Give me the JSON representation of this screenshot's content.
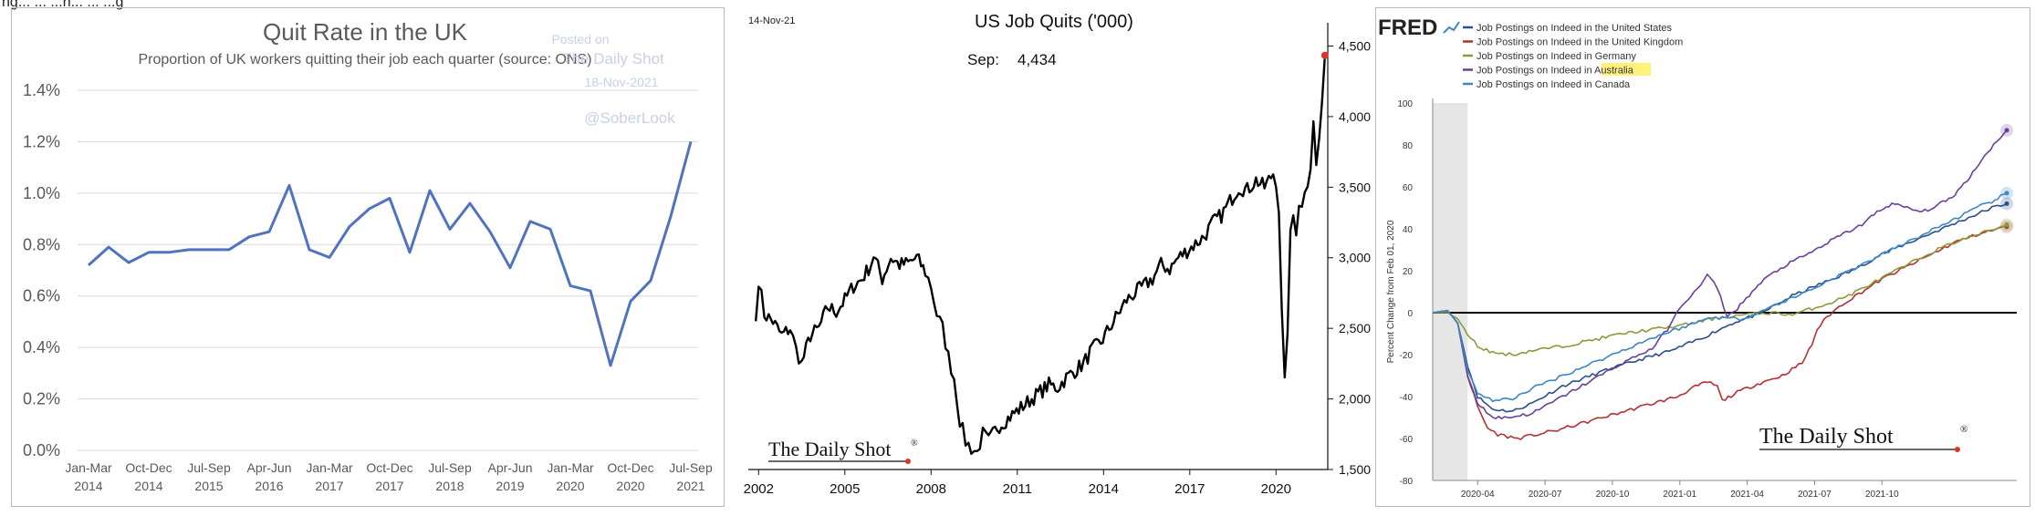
{
  "header_fragment": "ng... ... ...n... ... ...g",
  "chart_data": [
    {
      "type": "line",
      "title": "Quit Rate in the UK",
      "subtitle": "Proportion of UK workers quitting their job each quarter (source: ONS)",
      "watermark_lines": [
        "Posted on",
        "The Daily Shot",
        "18-Nov-2021",
        "@SoberLook"
      ],
      "yticks": [
        "0.0%",
        "0.2%",
        "0.4%",
        "0.6%",
        "0.8%",
        "1.0%",
        "1.2%",
        "1.4%"
      ],
      "ylim": [
        0,
        1.4
      ],
      "xtick_labels": [
        [
          "Jan-Mar",
          "2014"
        ],
        [
          "Oct-Dec",
          "2014"
        ],
        [
          "Jul-Sep",
          "2015"
        ],
        [
          "Apr-Jun",
          "2016"
        ],
        [
          "Jan-Mar",
          "2017"
        ],
        [
          "Oct-Dec",
          "2017"
        ],
        [
          "Jul-Sep",
          "2018"
        ],
        [
          "Apr-Jun",
          "2019"
        ],
        [
          "Jan-Mar",
          "2020"
        ],
        [
          "Oct-Dec",
          "2020"
        ],
        [
          "Jul-Sep",
          "2021"
        ]
      ],
      "x_quarters": [
        "2014 Q1",
        "2014 Q2",
        "2014 Q3",
        "2014 Q4",
        "2015 Q1",
        "2015 Q2",
        "2015 Q3",
        "2015 Q4",
        "2016 Q1",
        "2016 Q2",
        "2016 Q3",
        "2016 Q4",
        "2017 Q1",
        "2017 Q2",
        "2017 Q3",
        "2017 Q4",
        "2018 Q1",
        "2018 Q2",
        "2018 Q3",
        "2018 Q4",
        "2019 Q1",
        "2019 Q2",
        "2019 Q3",
        "2019 Q4",
        "2020 Q1",
        "2020 Q2",
        "2020 Q3",
        "2020 Q4",
        "2021 Q1",
        "2021 Q2",
        "2021 Q3"
      ],
      "values": [
        0.72,
        0.79,
        0.73,
        0.77,
        0.77,
        0.78,
        0.78,
        0.78,
        0.83,
        0.85,
        1.03,
        0.78,
        0.75,
        0.87,
        0.94,
        0.98,
        0.77,
        1.01,
        0.86,
        0.96,
        0.85,
        0.71,
        0.89,
        0.86,
        0.64,
        0.62,
        0.33,
        0.58,
        0.66,
        0.91,
        1.2
      ],
      "line_color": "#4f73be"
    },
    {
      "type": "line",
      "title": "US Job Quits ('000)",
      "date_label": "14-Nov-21",
      "annotation_label": "Sep:",
      "annotation_value": "4,434",
      "yticks": [
        "1,500",
        "2,000",
        "2,500",
        "3,000",
        "3,500",
        "4,000",
        "4,500"
      ],
      "ylim": [
        1500,
        4600
      ],
      "xticks": [
        "2002",
        "2005",
        "2008",
        "2011",
        "2014",
        "2017",
        "2020"
      ],
      "xlim": [
        2001.8,
        2021.8
      ],
      "brand": "The Daily Shot",
      "brand_mark": "®",
      "anchors": [
        [
          2001.9,
          2550
        ],
        [
          2002.0,
          2850
        ],
        [
          2002.2,
          2600
        ],
        [
          2002.5,
          2550
        ],
        [
          2002.8,
          2450
        ],
        [
          2003.1,
          2500
        ],
        [
          2003.3,
          2350
        ],
        [
          2003.5,
          2250
        ],
        [
          2003.8,
          2450
        ],
        [
          2004.1,
          2500
        ],
        [
          2004.4,
          2650
        ],
        [
          2004.7,
          2620
        ],
        [
          2005.0,
          2700
        ],
        [
          2005.3,
          2800
        ],
        [
          2005.6,
          2850
        ],
        [
          2005.9,
          2950
        ],
        [
          2006.0,
          3020
        ],
        [
          2006.3,
          2850
        ],
        [
          2006.6,
          3000
        ],
        [
          2006.9,
          2950
        ],
        [
          2007.2,
          2960
        ],
        [
          2007.5,
          3000
        ],
        [
          2007.8,
          2900
        ],
        [
          2008.0,
          2800
        ],
        [
          2008.2,
          2600
        ],
        [
          2008.4,
          2500
        ],
        [
          2008.6,
          2300
        ],
        [
          2008.8,
          2150
        ],
        [
          2009.0,
          1850
        ],
        [
          2009.2,
          1700
        ],
        [
          2009.4,
          1650
        ],
        [
          2009.6,
          1620
        ],
        [
          2009.8,
          1750
        ],
        [
          2010.0,
          1700
        ],
        [
          2010.3,
          1800
        ],
        [
          2010.6,
          1850
        ],
        [
          2010.9,
          1900
        ],
        [
          2011.2,
          1950
        ],
        [
          2011.5,
          2000
        ],
        [
          2011.8,
          2050
        ],
        [
          2012.1,
          2100
        ],
        [
          2012.4,
          2080
        ],
        [
          2012.7,
          2150
        ],
        [
          2013.0,
          2200
        ],
        [
          2013.3,
          2250
        ],
        [
          2013.6,
          2350
        ],
        [
          2013.9,
          2400
        ],
        [
          2014.2,
          2500
        ],
        [
          2014.5,
          2600
        ],
        [
          2014.8,
          2700
        ],
        [
          2015.1,
          2750
        ],
        [
          2015.4,
          2800
        ],
        [
          2015.7,
          2850
        ],
        [
          2016.0,
          2950
        ],
        [
          2016.3,
          2920
        ],
        [
          2016.6,
          3000
        ],
        [
          2016.9,
          3050
        ],
        [
          2017.2,
          3100
        ],
        [
          2017.5,
          3150
        ],
        [
          2017.8,
          3250
        ],
        [
          2018.1,
          3300
        ],
        [
          2018.4,
          3400
        ],
        [
          2018.7,
          3500
        ],
        [
          2019.0,
          3480
        ],
        [
          2019.3,
          3550
        ],
        [
          2019.6,
          3500
        ],
        [
          2019.9,
          3600
        ],
        [
          2020.0,
          3550
        ],
        [
          2020.1,
          3350
        ],
        [
          2020.2,
          2600
        ],
        [
          2020.3,
          2100
        ],
        [
          2020.4,
          2500
        ],
        [
          2020.5,
          3150
        ],
        [
          2020.6,
          3300
        ],
        [
          2020.7,
          3200
        ],
        [
          2020.8,
          3400
        ],
        [
          2020.9,
          3350
        ],
        [
          2021.0,
          3500
        ],
        [
          2021.1,
          3550
        ],
        [
          2021.2,
          3650
        ],
        [
          2021.3,
          3950
        ],
        [
          2021.4,
          3650
        ],
        [
          2021.5,
          3850
        ],
        [
          2021.6,
          4050
        ],
        [
          2021.7,
          4434
        ]
      ]
    },
    {
      "type": "line",
      "brand_left": "FRED",
      "legend": [
        {
          "pre": "Job Postings on Indeed in the United States",
          "hl": "",
          "color": "#2a4f8a"
        },
        {
          "pre": "Job Postings on Indeed in the United Kingdom",
          "hl": "",
          "color": "#b3312e"
        },
        {
          "pre": "Job Postings on Indeed in Germany",
          "hl": "",
          "color": "#8c9a3a"
        },
        {
          "pre": "Job Postings on Indeed in ",
          "hl": "Australia",
          "color": "#6a3e9c"
        },
        {
          "pre": "Job Postings on Indeed in Canada",
          "hl": "",
          "color": "#3d86c6"
        }
      ],
      "ylabel": "Percent Change from Feb 01, 2020",
      "yticks": [
        "-80",
        "-60",
        "-40",
        "-20",
        "0",
        "20",
        "40",
        "60",
        "80",
        "100"
      ],
      "ylim": [
        -80,
        100
      ],
      "xticks": [
        "2020-04",
        "2020-07",
        "2020-10",
        "2021-01",
        "2021-04",
        "2021-07",
        "2021-10"
      ],
      "brand": "The Daily Shot",
      "brand_mark": "®",
      "series": [
        {
          "name": "Job Postings on Indeed in the United States",
          "color": "#2a4f8a",
          "points": [
            [
              0,
              0
            ],
            [
              3,
              1
            ],
            [
              5,
              -5
            ],
            [
              7,
              -25
            ],
            [
              9,
              -40
            ],
            [
              12,
              -46
            ],
            [
              16,
              -47
            ],
            [
              20,
              -43
            ],
            [
              26,
              -35
            ],
            [
              34,
              -28
            ],
            [
              42,
              -22
            ],
            [
              48,
              -18
            ],
            [
              54,
              -12
            ],
            [
              60,
              -5
            ],
            [
              66,
              0
            ],
            [
              72,
              8
            ],
            [
              78,
              14
            ],
            [
              84,
              20
            ],
            [
              90,
              28
            ],
            [
              96,
              34
            ],
            [
              102,
              40
            ],
            [
              108,
              46
            ],
            [
              112,
              50
            ],
            [
              115,
              52
            ]
          ]
        },
        {
          "name": "Job Postings on Indeed in the United Kingdom",
          "color": "#b3312e",
          "points": [
            [
              0,
              0
            ],
            [
              3,
              1
            ],
            [
              5,
              -5
            ],
            [
              7,
              -30
            ],
            [
              9,
              -45
            ],
            [
              11,
              -55
            ],
            [
              13,
              -58
            ],
            [
              17,
              -60
            ],
            [
              21,
              -58
            ],
            [
              25,
              -56
            ],
            [
              31,
              -52
            ],
            [
              37,
              -48
            ],
            [
              43,
              -44
            ],
            [
              49,
              -40
            ],
            [
              52,
              -36
            ],
            [
              55,
              -33
            ],
            [
              57,
              -35
            ],
            [
              58,
              -42
            ],
            [
              61,
              -38
            ],
            [
              65,
              -34
            ],
            [
              70,
              -30
            ],
            [
              74,
              -24
            ],
            [
              76,
              -15
            ],
            [
              77,
              -8
            ],
            [
              79,
              -2
            ],
            [
              82,
              4
            ],
            [
              86,
              10
            ],
            [
              90,
              16
            ],
            [
              95,
              22
            ],
            [
              100,
              28
            ],
            [
              105,
              34
            ],
            [
              110,
              38
            ],
            [
              115,
              41
            ]
          ]
        },
        {
          "name": "Job Postings on Indeed in Germany",
          "color": "#8c9a3a",
          "points": [
            [
              0,
              0
            ],
            [
              3,
              0
            ],
            [
              5,
              -3
            ],
            [
              7,
              -10
            ],
            [
              9,
              -16
            ],
            [
              12,
              -19
            ],
            [
              16,
              -20
            ],
            [
              20,
              -18
            ],
            [
              26,
              -16
            ],
            [
              32,
              -13
            ],
            [
              38,
              -10
            ],
            [
              44,
              -8
            ],
            [
              50,
              -6
            ],
            [
              56,
              -3
            ],
            [
              62,
              -1
            ],
            [
              68,
              0
            ],
            [
              72,
              -1
            ],
            [
              76,
              2
            ],
            [
              80,
              5
            ],
            [
              84,
              9
            ],
            [
              88,
              14
            ],
            [
              92,
              19
            ],
            [
              96,
              24
            ],
            [
              100,
              29
            ],
            [
              105,
              34
            ],
            [
              110,
              38
            ],
            [
              115,
              42
            ]
          ]
        },
        {
          "name": "Job Postings on Indeed in Australia",
          "color": "#6a3e9c",
          "points": [
            [
              0,
              0
            ],
            [
              3,
              1
            ],
            [
              5,
              -5
            ],
            [
              7,
              -30
            ],
            [
              9,
              -43
            ],
            [
              12,
              -50
            ],
            [
              15,
              -50
            ],
            [
              20,
              -48
            ],
            [
              26,
              -40
            ],
            [
              32,
              -32
            ],
            [
              38,
              -24
            ],
            [
              44,
              -17
            ],
            [
              47,
              -8
            ],
            [
              50,
              4
            ],
            [
              53,
              11
            ],
            [
              55,
              18
            ],
            [
              57,
              12
            ],
            [
              59,
              -2
            ],
            [
              61,
              2
            ],
            [
              64,
              10
            ],
            [
              67,
              17
            ],
            [
              71,
              23
            ],
            [
              76,
              29
            ],
            [
              81,
              36
            ],
            [
              86,
              42
            ],
            [
              89,
              48
            ],
            [
              92,
              52
            ],
            [
              95,
              50
            ],
            [
              98,
              48
            ],
            [
              101,
              51
            ],
            [
              104,
              55
            ],
            [
              107,
              63
            ],
            [
              110,
              73
            ],
            [
              113,
              82
            ],
            [
              115,
              87
            ]
          ]
        },
        {
          "name": "Job Postings on Indeed in Canada",
          "color": "#3d86c6",
          "points": [
            [
              0,
              0
            ],
            [
              3,
              1
            ],
            [
              5,
              -5
            ],
            [
              7,
              -28
            ],
            [
              9,
              -38
            ],
            [
              12,
              -42
            ],
            [
              16,
              -41
            ],
            [
              20,
              -36
            ],
            [
              26,
              -30
            ],
            [
              32,
              -24
            ],
            [
              38,
              -18
            ],
            [
              44,
              -12
            ],
            [
              50,
              -7
            ],
            [
              56,
              -2
            ],
            [
              62,
              -3
            ],
            [
              68,
              3
            ],
            [
              74,
              9
            ],
            [
              80,
              16
            ],
            [
              86,
              23
            ],
            [
              92,
              30
            ],
            [
              98,
              37
            ],
            [
              104,
              44
            ],
            [
              109,
              50
            ],
            [
              112,
              53
            ],
            [
              115,
              57
            ]
          ]
        }
      ]
    }
  ]
}
